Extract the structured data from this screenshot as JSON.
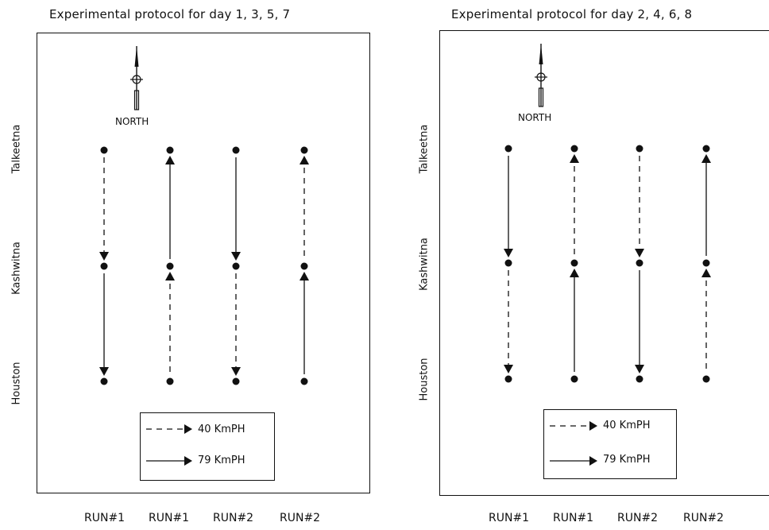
{
  "panels": [
    {
      "title": "Experimental protocol for day 1, 3, 5, 7",
      "north_label": "NORTH",
      "locations": [
        "Talkeetna",
        "Kashwitna",
        "Houston"
      ],
      "runs": [
        "RUN#1",
        "RUN#1",
        "RUN#2",
        "RUN#2"
      ],
      "legend": {
        "dashed": "40 KmPH",
        "solid": "79 KmPH"
      },
      "segments": [
        {
          "run": 0,
          "upper": {
            "speed": "40",
            "direction": "south"
          },
          "lower": {
            "speed": "79",
            "direction": "south"
          }
        },
        {
          "run": 1,
          "upper": {
            "speed": "79",
            "direction": "north"
          },
          "lower": {
            "speed": "40",
            "direction": "north"
          }
        },
        {
          "run": 2,
          "upper": {
            "speed": "79",
            "direction": "south"
          },
          "lower": {
            "speed": "40",
            "direction": "south"
          }
        },
        {
          "run": 3,
          "upper": {
            "speed": "40",
            "direction": "north"
          },
          "lower": {
            "speed": "79",
            "direction": "north"
          }
        }
      ]
    },
    {
      "title": "Experimental protocol for day 2, 4, 6, 8",
      "north_label": "NORTH",
      "locations": [
        "Talkeetna",
        "Kashwitna",
        "Houston"
      ],
      "runs": [
        "RUN#1",
        "RUN#1",
        "RUN#2",
        "RUN#2"
      ],
      "legend": {
        "dashed": "40 KmPH",
        "solid": "79 KmPH"
      },
      "segments": [
        {
          "run": 0,
          "upper": {
            "speed": "79",
            "direction": "south"
          },
          "lower": {
            "speed": "40",
            "direction": "south"
          }
        },
        {
          "run": 1,
          "upper": {
            "speed": "40",
            "direction": "north"
          },
          "lower": {
            "speed": "79",
            "direction": "north"
          }
        },
        {
          "run": 2,
          "upper": {
            "speed": "40",
            "direction": "south"
          },
          "lower": {
            "speed": "79",
            "direction": "south"
          }
        },
        {
          "run": 3,
          "upper": {
            "speed": "79",
            "direction": "north"
          },
          "lower": {
            "speed": "40",
            "direction": "north"
          }
        }
      ]
    }
  ]
}
